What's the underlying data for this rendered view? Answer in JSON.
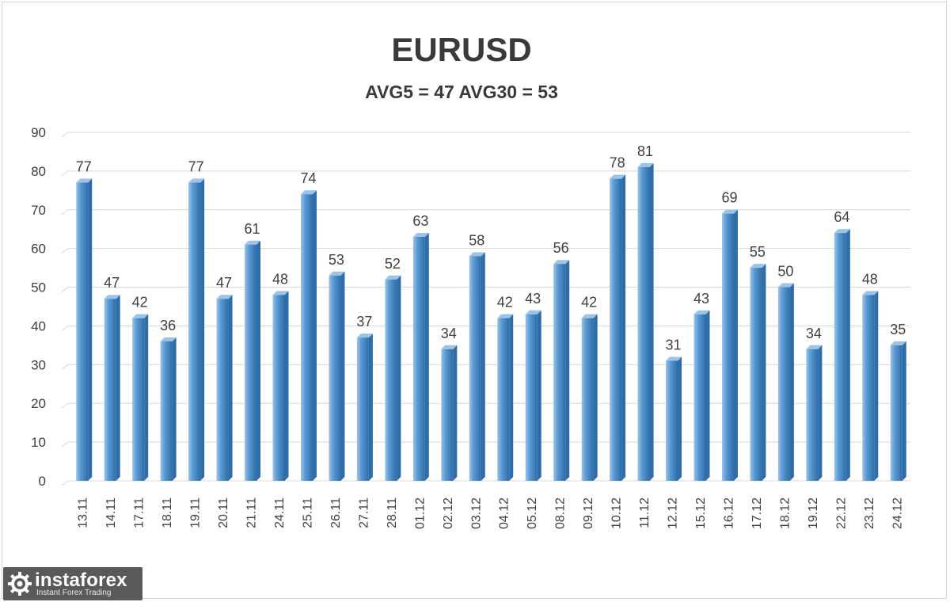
{
  "chart_data": {
    "type": "bar",
    "title": "EURUSD",
    "subtitle": "AVG5 = 47 AVG30 = 53",
    "categories": [
      "13.11",
      "14.11",
      "17.11",
      "18.11",
      "19.11",
      "20.11",
      "21.11",
      "24.11",
      "25.11",
      "26.11",
      "27.11",
      "28.11",
      "01.12",
      "02.12",
      "03.12",
      "04.12",
      "05.12",
      "08.12",
      "09.12",
      "10.12",
      "11.12",
      "12.12",
      "15.12",
      "16.12",
      "17.12",
      "18.12",
      "19.12",
      "22.12",
      "23.12",
      "24.12"
    ],
    "values": [
      77,
      47,
      42,
      36,
      77,
      47,
      61,
      48,
      74,
      53,
      37,
      52,
      63,
      34,
      58,
      42,
      43,
      56,
      42,
      78,
      81,
      31,
      43,
      69,
      55,
      50,
      34,
      64,
      48,
      35
    ],
    "ylim": [
      0,
      90
    ],
    "yticks": [
      0,
      10,
      20,
      30,
      40,
      50,
      60,
      70,
      80,
      90
    ],
    "grid": true,
    "legend": "none",
    "data_labels": true,
    "colors": {
      "bar": "#5b9bd5",
      "bar_light": "#9cc3e8",
      "bar_dark": "#2e6da8",
      "grid": "#d9d9d9",
      "label": "#404040"
    }
  },
  "watermark": {
    "brand": "instaforex",
    "tagline": "Instant Forex Trading",
    "icon": "gear-icon"
  }
}
